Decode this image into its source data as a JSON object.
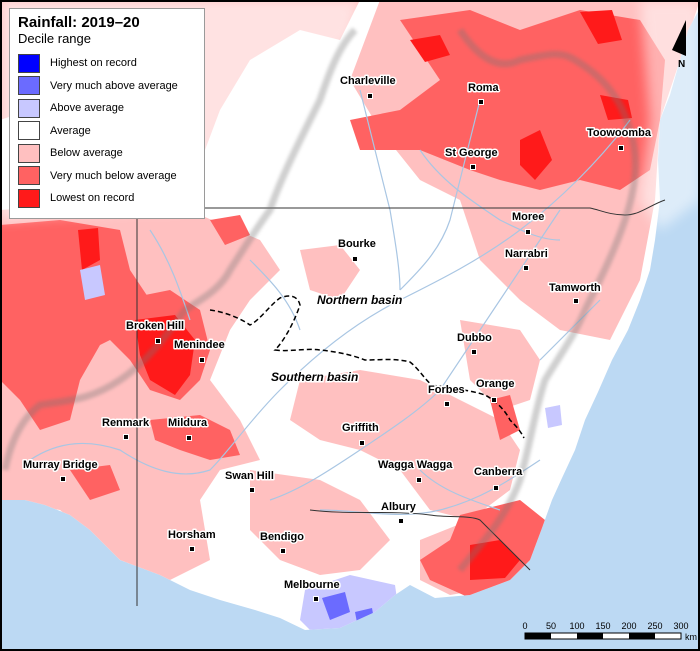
{
  "legend": {
    "title": "Rainfall: 2019–20",
    "subtitle": "Decile range",
    "items": [
      {
        "label": "Highest on record",
        "color": "#0000ff"
      },
      {
        "label": "Very much above average",
        "color": "#6b6bff"
      },
      {
        "label": "Above average",
        "color": "#c8c8ff"
      },
      {
        "label": "Average",
        "color": "#ffffff"
      },
      {
        "label": "Below average",
        "color": "#ffc0c0"
      },
      {
        "label": "Very much below average",
        "color": "#ff6262"
      },
      {
        "label": "Lowest on record",
        "color": "#ff1a1a"
      }
    ]
  },
  "cities": [
    {
      "name": "Charleville"
    },
    {
      "name": "Roma"
    },
    {
      "name": "Toowoomba"
    },
    {
      "name": "St George"
    },
    {
      "name": "Moree"
    },
    {
      "name": "Bourke"
    },
    {
      "name": "Narrabri"
    },
    {
      "name": "Tamworth"
    },
    {
      "name": "Broken Hill"
    },
    {
      "name": "Menindee"
    },
    {
      "name": "Dubbo"
    },
    {
      "name": "Orange"
    },
    {
      "name": "Forbes"
    },
    {
      "name": "Renmark"
    },
    {
      "name": "Mildura"
    },
    {
      "name": "Griffith"
    },
    {
      "name": "Murray Bridge"
    },
    {
      "name": "Wagga Wagga"
    },
    {
      "name": "Canberra"
    },
    {
      "name": "Swan Hill"
    },
    {
      "name": "Albury"
    },
    {
      "name": "Horsham"
    },
    {
      "name": "Bendigo"
    },
    {
      "name": "Melbourne"
    }
  ],
  "basins": {
    "northern": "Northern basin",
    "southern": "Southern basin"
  },
  "scale_bar": {
    "ticks": [
      "0",
      "50",
      "100",
      "150",
      "200",
      "250",
      "300"
    ],
    "unit": "km"
  },
  "north_arrow": {
    "label": "N"
  },
  "colors": {
    "ocean": "#bcd9f3",
    "land": "#ffffff",
    "river": "#a9c6e3",
    "border": "#000000"
  }
}
